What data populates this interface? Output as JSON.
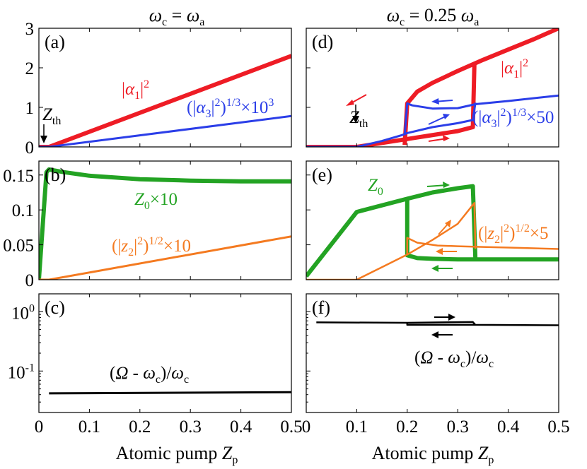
{
  "column_titles": {
    "left": {
      "base": "ω",
      "sub": "c",
      "mid": " = ",
      "base2": "ω",
      "sub2": "a"
    },
    "right": {
      "base": "ω",
      "sub": "c",
      "mid": " = 0.25 ",
      "base2": "ω",
      "sub2": "a"
    }
  },
  "x_axis_label": {
    "text": "Atomic pump ",
    "var": "Z",
    "sub": "p"
  },
  "colors": {
    "red": "#ee1c25",
    "blue": "#2b3ee8",
    "green": "#23a323",
    "orange": "#f47a20",
    "black": "#000000"
  },
  "chart_data": [
    {
      "panel": "(a)",
      "type": "line",
      "xlim": [
        0,
        0.5
      ],
      "ylim": [
        0,
        3
      ],
      "xticks": [],
      "yticks": [
        "0",
        "1",
        "2",
        "3"
      ],
      "series": [
        {
          "name": "|α1|^2",
          "color": "#ee1c25",
          "width": 6,
          "x": [
            0,
            0.02,
            0.5
          ],
          "y": [
            0,
            0,
            2.3
          ]
        },
        {
          "name": "(|α3|^2)^(1/3)×10^3",
          "color": "#2b3ee8",
          "width": 3,
          "x": [
            0,
            0.02,
            0.5
          ],
          "y": [
            0,
            0,
            0.78
          ]
        }
      ],
      "annotations": {
        "zth": {
          "base": "Z",
          "sub": "th",
          "x": 0.02
        }
      }
    },
    {
      "panel": "(b)",
      "type": "line",
      "xlim": [
        0,
        0.5
      ],
      "ylim": [
        0,
        0.17
      ],
      "xticks": [],
      "yticks": [
        "0",
        "0.05",
        "0.1",
        "0.15"
      ],
      "series": [
        {
          "name": "Z0×10",
          "color": "#23a323",
          "width": 6,
          "x": [
            0,
            0.015,
            0.02,
            0.05,
            0.1,
            0.2,
            0.3,
            0.4,
            0.5
          ],
          "y": [
            0,
            0.154,
            0.158,
            0.154,
            0.149,
            0.144,
            0.142,
            0.141,
            0.141
          ]
        },
        {
          "name": "(|z2|^2)^(1/2)×10",
          "color": "#f47a20",
          "width": 3,
          "x": [
            0,
            0.02,
            0.5
          ],
          "y": [
            0,
            0,
            0.062
          ]
        }
      ]
    },
    {
      "panel": "(c)",
      "type": "line",
      "xlim": [
        0,
        0.5
      ],
      "ylim": [
        0.02,
        2
      ],
      "yscale": "log",
      "xticks": [
        "0",
        "0.1",
        "0.2",
        "0.3",
        "0.4",
        "0.5"
      ],
      "yticks": [
        {
          "v": 1,
          "base": "10",
          "exp": "0"
        },
        {
          "v": 0.1,
          "base": "10",
          "exp": "-1"
        }
      ],
      "series": [
        {
          "name": "(Ω - ωc)/ωc",
          "color": "#000000",
          "width": 3,
          "x": [
            0.02,
            0.5
          ],
          "y": [
            0.042,
            0.044
          ]
        }
      ]
    },
    {
      "panel": "(d)",
      "type": "line",
      "xlim": [
        0,
        0.5
      ],
      "ylim": [
        0,
        3
      ],
      "xticks": [],
      "yticks": [],
      "series": [
        {
          "name": "|α1|^2 lower",
          "color": "#ee1c25",
          "width": 6,
          "x": [
            0,
            0.1,
            0.2,
            0.26,
            0.3,
            0.33,
            0.333
          ],
          "y": [
            0,
            0,
            0.2,
            0.32,
            0.4,
            0.5,
            2.1
          ]
        },
        {
          "name": "|α1|^2 upper",
          "color": "#ee1c25",
          "width": 6,
          "x": [
            0.195,
            0.2,
            0.22,
            0.25,
            0.3,
            0.35,
            0.4,
            0.45,
            0.5
          ],
          "y": [
            0.05,
            1.1,
            1.4,
            1.62,
            1.92,
            2.2,
            2.46,
            2.72,
            3.0
          ]
        },
        {
          "name": "(|α3|^2)^(1/3)×50 lower",
          "color": "#2b3ee8",
          "width": 3,
          "x": [
            0,
            0.1,
            0.15,
            0.19,
            0.2,
            0.25,
            0.3,
            0.33,
            0.335
          ],
          "y": [
            0,
            0,
            0.15,
            0.3,
            0.35,
            0.5,
            0.6,
            0.68,
            1.12
          ]
        },
        {
          "name": "(|α3|^2)^(1/3)×50 upper",
          "color": "#2b3ee8",
          "width": 3,
          "x": [
            0.195,
            0.2,
            0.21,
            0.25,
            0.3,
            0.335,
            0.4,
            0.5
          ],
          "y": [
            0.3,
            1.1,
            1.05,
            0.97,
            0.98,
            1.08,
            1.16,
            1.3
          ]
        }
      ],
      "annotations": {
        "zth": {
          "base": "Z",
          "sub": "th",
          "x": 0.1
        }
      }
    },
    {
      "panel": "(e)",
      "type": "line",
      "xlim": [
        0,
        0.5
      ],
      "ylim": [
        0,
        0.17
      ],
      "xticks": [],
      "yticks": [],
      "series": [
        {
          "name": "Z0 upper",
          "color": "#23a323",
          "width": 6,
          "x": [
            0,
            0.1,
            0.2,
            0.25,
            0.3,
            0.33,
            0.335
          ],
          "y": [
            0.005,
            0.097,
            0.116,
            0.125,
            0.131,
            0.134,
            0.03
          ]
        },
        {
          "name": "Z0 lower",
          "color": "#23a323",
          "width": 6,
          "x": [
            0.2,
            0.2,
            0.22,
            0.25,
            0.3,
            0.35,
            0.4,
            0.45,
            0.5
          ],
          "y": [
            0.118,
            0.035,
            0.031,
            0.03,
            0.029,
            0.029,
            0.029,
            0.029,
            0.029
          ]
        },
        {
          "name": "(|z2|^2)^(1/2)×5 lower",
          "color": "#f47a20",
          "width": 2.5,
          "x": [
            0,
            0.1,
            0.15,
            0.2,
            0.25,
            0.3,
            0.333,
            0.335
          ],
          "y": [
            0,
            0,
            0.018,
            0.036,
            0.057,
            0.08,
            0.11,
            0.044
          ]
        },
        {
          "name": "(|z2|^2)^(1/2)×5 upper",
          "color": "#f47a20",
          "width": 2.5,
          "x": [
            0.2,
            0.2,
            0.22,
            0.26,
            0.3,
            0.35,
            0.4,
            0.45,
            0.5
          ],
          "y": [
            0.036,
            0.06,
            0.053,
            0.049,
            0.048,
            0.047,
            0.046,
            0.045,
            0.044
          ]
        }
      ]
    },
    {
      "panel": "(f)",
      "type": "line",
      "xlim": [
        0,
        0.5
      ],
      "ylim": [
        0.02,
        2
      ],
      "yscale": "log",
      "xticks": [
        "0",
        "0.1",
        "0.2",
        "0.3",
        "0.4",
        "0.5"
      ],
      "yticks": [],
      "series": [
        {
          "name": "(Ω - ωc)/ωc upper",
          "color": "#000000",
          "width": 2.5,
          "x": [
            0.02,
            0.2,
            0.33,
            0.335,
            0.5
          ],
          "y": [
            0.66,
            0.65,
            0.67,
            0.6,
            0.59
          ]
        },
        {
          "name": "(Ω - ωc)/ωc lower",
          "color": "#000000",
          "width": 2.5,
          "x": [
            0.2,
            0.2,
            0.335
          ],
          "y": [
            0.65,
            0.6,
            0.6
          ]
        }
      ]
    }
  ],
  "annotations": {
    "a_alpha1": {
      "open": "|",
      "var": "α",
      "sub": "1",
      "close": "|",
      "sup": "2"
    },
    "a_alpha3": {
      "open": "(|",
      "var": "α",
      "sub": "3",
      "close": "|",
      "sup1": "2",
      "mid": ")",
      "sup2": "1/3",
      "times": "×10",
      "sup3": "3"
    },
    "b_z0": {
      "var": "Z",
      "sub": "0",
      "times": "×10"
    },
    "b_z2": {
      "open": "(|",
      "var": "z",
      "sub": "2",
      "close": "|",
      "sup1": "2",
      "mid": ")",
      "sup2": "1/2",
      "times": "×10"
    },
    "c_omega": {
      "open": "(",
      "var": "Ω",
      "mid": " - ",
      "var2": "ω",
      "sub": "c",
      "close": ")/",
      "var3": "ω",
      "sub2": "c"
    },
    "d_alpha1": {
      "open": "|",
      "var": "α",
      "sub": "1",
      "close": "|",
      "sup": "2"
    },
    "d_alpha3": {
      "open": "(|",
      "var": "α",
      "sub": "3",
      "close": "|",
      "sup1": "2",
      "mid": ")",
      "sup2": "1/3",
      "times": "×50"
    },
    "e_z0": {
      "var": "Z",
      "sub": "0"
    },
    "e_z2": {
      "open": "(|",
      "var": "z",
      "sub": "2",
      "close": "|",
      "sup1": "2",
      "mid": ")",
      "sup2": "1/2",
      "times": "×5"
    },
    "f_omega": {
      "open": "(",
      "var": "Ω",
      "mid": " - ",
      "var2": "ω",
      "sub": "c",
      "close": ")/",
      "var3": "ω",
      "sub2": "c"
    }
  }
}
